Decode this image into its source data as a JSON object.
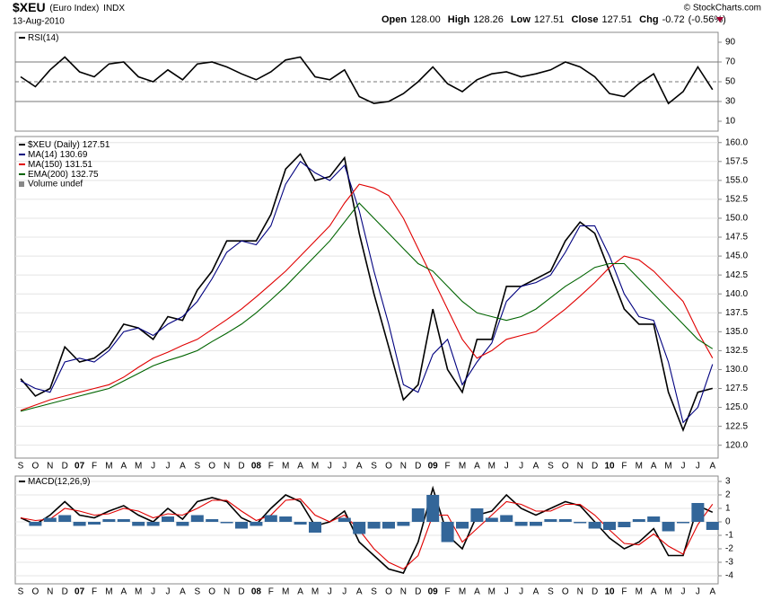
{
  "header": {
    "symbol": "$XEU",
    "name": "(Euro Index)",
    "exchange": "INDX",
    "date": "13-Aug-2010",
    "quote": [
      {
        "name": "Open",
        "value": 128.0,
        "label": "128.00"
      },
      {
        "name": "High",
        "value": 128.26,
        "label": "128.26"
      },
      {
        "name": "Low",
        "value": 127.51,
        "label": "127.51"
      },
      {
        "name": "Close",
        "value": 127.51,
        "label": "127.51"
      },
      {
        "name": "Chg",
        "value": -0.72,
        "label": "-0.72"
      }
    ],
    "change_pct": {
      "value": -0.56,
      "label": "(-0.56%)"
    },
    "copyright": "© StockCharts.com"
  },
  "chart_data": [
    {
      "type": "line",
      "title": "RSI(14)",
      "ylim": [
        0,
        100
      ],
      "yticks": [
        10,
        30,
        50,
        70,
        90
      ],
      "levels": [
        30,
        50,
        70
      ],
      "dashed_level": 50,
      "series": [
        {
          "name": "RSI(14)",
          "color": "#000000",
          "values": [
            55,
            45,
            62,
            75,
            60,
            55,
            68,
            70,
            55,
            50,
            62,
            52,
            68,
            70,
            65,
            58,
            52,
            60,
            72,
            75,
            55,
            52,
            62,
            35,
            28,
            30,
            38,
            50,
            65,
            48,
            40,
            52,
            58,
            60,
            55,
            58,
            62,
            70,
            65,
            55,
            38,
            35,
            48,
            58,
            28,
            40,
            65,
            41.99
          ]
        }
      ]
    },
    {
      "type": "line",
      "ylim": [
        118.3,
        160.8
      ],
      "yticks": [
        {
          "value": 120,
          "label": "120.0"
        },
        {
          "value": 122.5,
          "label": "122.5"
        },
        {
          "value": 125,
          "label": "125.0"
        },
        {
          "value": 127.5,
          "label": "127.5"
        },
        {
          "value": 130,
          "label": "130.0"
        },
        {
          "value": 132.5,
          "label": "132.5"
        },
        {
          "value": 135,
          "label": "135.0"
        },
        {
          "value": 137.5,
          "label": "137.5"
        },
        {
          "value": 140,
          "label": "140.0"
        },
        {
          "value": 142.5,
          "label": "142.5"
        },
        {
          "value": 145,
          "label": "145.0"
        },
        {
          "value": 147.5,
          "label": "147.5"
        },
        {
          "value": 150,
          "label": "150.0"
        },
        {
          "value": 152.5,
          "label": "152.5"
        },
        {
          "value": 155,
          "label": "155.0"
        },
        {
          "value": 157.5,
          "label": "157.5"
        },
        {
          "value": 160,
          "label": "160.0"
        }
      ],
      "grid": true,
      "categories": [
        "S",
        "O",
        "N",
        "D",
        "07",
        "F",
        "M",
        "A",
        "M",
        "J",
        "J",
        "A",
        "S",
        "O",
        "N",
        "D",
        "08",
        "F",
        "M",
        "A",
        "M",
        "J",
        "J",
        "A",
        "S",
        "O",
        "N",
        "D",
        "09",
        "F",
        "M",
        "A",
        "M",
        "J",
        "J",
        "A",
        "S",
        "O",
        "N",
        "D",
        "10",
        "F",
        "M",
        "A",
        "M",
        "J",
        "J",
        "A"
      ],
      "volume_label": "Volume undef",
      "series": [
        {
          "name": "$XEU (Daily)",
          "color": "#000000",
          "values": [
            128.8,
            126.5,
            127.5,
            133,
            131,
            131.5,
            133,
            136,
            135.5,
            134,
            137,
            136.5,
            140.5,
            143,
            147,
            147,
            147,
            150.5,
            156.5,
            158.5,
            155,
            155.5,
            158,
            148,
            140,
            133,
            126,
            128,
            138,
            130,
            127,
            134,
            134,
            141,
            141,
            142,
            143,
            147,
            149.5,
            148,
            143,
            138,
            136,
            136,
            127,
            122,
            127,
            127.51
          ]
        },
        {
          "name": "MA(14)",
          "color": "#00007f",
          "values": [
            128.5,
            127.5,
            127,
            131,
            131.5,
            131,
            132.5,
            135,
            135.5,
            134.5,
            136,
            137,
            139,
            142,
            145.5,
            147,
            146.5,
            149,
            154.5,
            157.5,
            156,
            155,
            157,
            151,
            143,
            136,
            128,
            127,
            132,
            134,
            128,
            131,
            133.5,
            139,
            141,
            141.5,
            142.5,
            145.5,
            149,
            149,
            145,
            140,
            137,
            136.5,
            131,
            123,
            125,
            130.69
          ]
        },
        {
          "name": "MA(150)",
          "color": "#e00000",
          "values": [
            124.6,
            125.3,
            126,
            126.5,
            127,
            127.5,
            128,
            129,
            130.3,
            131.5,
            132.3,
            133.2,
            134,
            135.3,
            136.6,
            138,
            139.6,
            141.3,
            143,
            145,
            147,
            149,
            152,
            154.5,
            154,
            153,
            150,
            146,
            142,
            138,
            134,
            131.5,
            132.5,
            134,
            134.5,
            135,
            136.5,
            138,
            139.7,
            141.5,
            143.5,
            145,
            144.5,
            143,
            141,
            139,
            135,
            131.51
          ]
        },
        {
          "name": "EMA(200)",
          "color": "#006400",
          "values": [
            124.5,
            125,
            125.5,
            126,
            126.5,
            127,
            127.5,
            128.5,
            129.5,
            130.5,
            131.2,
            131.8,
            132.5,
            133.7,
            134.8,
            136,
            137.5,
            139.2,
            141,
            143,
            145,
            147,
            149.5,
            152,
            150,
            148,
            146,
            144,
            143,
            141,
            139,
            137.5,
            137,
            136.5,
            137,
            138,
            139.5,
            141,
            142.2,
            143.5,
            144,
            144,
            142,
            140,
            138,
            136,
            134,
            132.75
          ]
        }
      ]
    },
    {
      "type": "line",
      "title": "MACD(12,26,9)",
      "ylim": [
        -4.6,
        3.4
      ],
      "yticks": [
        3,
        2,
        1,
        0,
        -1,
        -2,
        -3,
        -4
      ],
      "grid": true,
      "categories": [
        "S",
        "O",
        "N",
        "D",
        "07",
        "F",
        "M",
        "A",
        "M",
        "J",
        "J",
        "A",
        "S",
        "O",
        "N",
        "D",
        "08",
        "F",
        "M",
        "A",
        "M",
        "J",
        "J",
        "A",
        "S",
        "O",
        "N",
        "D",
        "09",
        "F",
        "M",
        "A",
        "M",
        "J",
        "J",
        "A",
        "S",
        "O",
        "N",
        "D",
        "10",
        "F",
        "M",
        "A",
        "M",
        "J",
        "J",
        "A"
      ],
      "series": [
        {
          "name": "MACD",
          "color": "#000000",
          "values": [
            0.3,
            -0.2,
            0.5,
            1.5,
            0.5,
            0.3,
            0.8,
            1.2,
            0.5,
            0,
            1,
            0.2,
            1.5,
            1.8,
            1.5,
            0.3,
            -0.2,
            1,
            2,
            1.5,
            -0.3,
            0,
            0.8,
            -1.5,
            -2.5,
            -3.5,
            -3.8,
            -1.5,
            2.5,
            -1,
            -2,
            0.5,
            0.8,
            2,
            1,
            0.5,
            1,
            1.5,
            1.2,
            0,
            -1.2,
            -2,
            -1.5,
            -0.5,
            -2.5,
            -2.5,
            1.2,
            0.712
          ]
        },
        {
          "name": "Signal",
          "color": "#e00000",
          "values": [
            0.3,
            0.1,
            0.2,
            1,
            0.8,
            0.5,
            0.6,
            1,
            0.8,
            0.3,
            0.6,
            0.5,
            1,
            1.6,
            1.6,
            0.8,
            0.1,
            0.5,
            1.6,
            1.7,
            0.5,
            0,
            0.5,
            -0.6,
            -2,
            -3,
            -3.5,
            -2.5,
            0.5,
            0.5,
            -1.5,
            -0.5,
            0.5,
            1.5,
            1.3,
            0.8,
            0.8,
            1.3,
            1.3,
            0.5,
            -0.6,
            -1.6,
            -1.7,
            -0.9,
            -1.8,
            -2.4,
            -0.2,
            1.312
          ]
        },
        {
          "name": "Histogram",
          "type": "bar",
          "color": "#336699",
          "values": [
            0,
            -0.3,
            0.3,
            0.5,
            -0.3,
            -0.2,
            0.2,
            0.2,
            -0.3,
            -0.3,
            0.4,
            -0.3,
            0.5,
            0.2,
            -0.1,
            -0.5,
            -0.3,
            0.5,
            0.4,
            -0.2,
            -0.8,
            0,
            0.3,
            -0.9,
            -0.5,
            -0.5,
            -0.3,
            1,
            2,
            -1.5,
            -0.5,
            1,
            0.3,
            0.5,
            -0.3,
            -0.3,
            0.2,
            0.2,
            -0.1,
            -0.5,
            -0.6,
            -0.4,
            0.2,
            0.4,
            -0.7,
            -0.1,
            1.4,
            -0.599
          ]
        }
      ]
    }
  ]
}
